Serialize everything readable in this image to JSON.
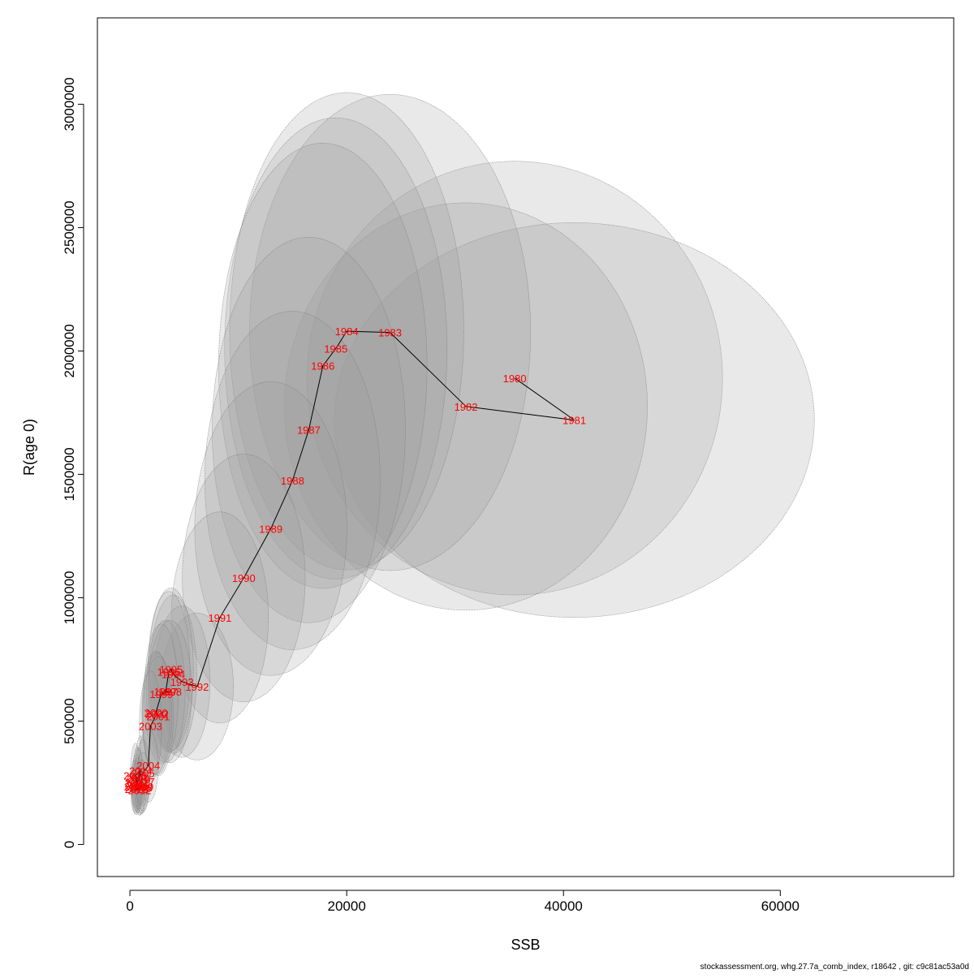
{
  "chart_data": {
    "type": "scatter",
    "title": "",
    "xlabel": "SSB",
    "ylabel": "R(age 0)",
    "xlim": [
      -3000,
      76000
    ],
    "ylim": [
      -130000,
      3350000
    ],
    "x_ticks": [
      0,
      20000,
      40000,
      60000
    ],
    "x_tick_labels": [
      "0",
      "20000",
      "40000",
      "60000"
    ],
    "y_ticks": [
      0,
      500000,
      1000000,
      1500000,
      2000000,
      2500000,
      3000000
    ],
    "y_tick_labels": [
      "0",
      "500000",
      "1000000",
      "1500000",
      "2000000",
      "2500000",
      "3000000"
    ],
    "grid": false,
    "legend": "none",
    "line_color": "#000000",
    "label_color": "#ff0000",
    "ellipse_fill": "#999999",
    "ellipse_stroke": "#777777",
    "points": [
      {
        "year": "1980",
        "ssb": 35500,
        "rec": 1890000
      },
      {
        "year": "1981",
        "ssb": 41000,
        "rec": 1720000
      },
      {
        "year": "1982",
        "ssb": 31000,
        "rec": 1775000
      },
      {
        "year": "1983",
        "ssb": 24000,
        "rec": 2075000
      },
      {
        "year": "1984",
        "ssb": 20000,
        "rec": 2080000
      },
      {
        "year": "1985",
        "ssb": 19000,
        "rec": 2010000
      },
      {
        "year": "1986",
        "ssb": 17800,
        "rec": 1940000
      },
      {
        "year": "1987",
        "ssb": 16500,
        "rec": 1680000
      },
      {
        "year": "1988",
        "ssb": 15000,
        "rec": 1475000
      },
      {
        "year": "1989",
        "ssb": 13000,
        "rec": 1280000
      },
      {
        "year": "1990",
        "ssb": 10500,
        "rec": 1080000
      },
      {
        "year": "1991",
        "ssb": 8300,
        "rec": 920000
      },
      {
        "year": "1992",
        "ssb": 6200,
        "rec": 640000
      },
      {
        "year": "1993",
        "ssb": 4800,
        "rec": 660000
      },
      {
        "year": "1994",
        "ssb": 4000,
        "rec": 690000
      },
      {
        "year": "1995",
        "ssb": 3800,
        "rec": 710000
      },
      {
        "year": "1996",
        "ssb": 3600,
        "rec": 700000
      },
      {
        "year": "1997",
        "ssb": 3300,
        "rec": 620000
      },
      {
        "year": "1998",
        "ssb": 3700,
        "rec": 620000
      },
      {
        "year": "1999",
        "ssb": 2900,
        "rec": 610000
      },
      {
        "year": "2000",
        "ssb": 2400,
        "rec": 535000
      },
      {
        "year": "2001",
        "ssb": 2600,
        "rec": 520000
      },
      {
        "year": "2002",
        "ssb": 2500,
        "rec": 530000
      },
      {
        "year": "2003",
        "ssb": 1900,
        "rec": 480000
      },
      {
        "year": "2004",
        "ssb": 1700,
        "rec": 320000
      },
      {
        "year": "2005",
        "ssb": 1200,
        "rec": 290000
      },
      {
        "year": "2006",
        "ssb": 700,
        "rec": 270000
      },
      {
        "year": "2007",
        "ssb": 600,
        "rec": 250000
      },
      {
        "year": "2008",
        "ssb": 1000,
        "rec": 230000
      },
      {
        "year": "2009",
        "ssb": 1100,
        "rec": 235000
      },
      {
        "year": "2010",
        "ssb": 800,
        "rec": 265000
      },
      {
        "year": "2011",
        "ssb": 500,
        "rec": 235000
      },
      {
        "year": "2012",
        "ssb": 900,
        "rec": 220000
      },
      {
        "year": "2013",
        "ssb": 600,
        "rec": 225000
      },
      {
        "year": "2014",
        "ssb": 1000,
        "rec": 300000
      },
      {
        "year": "2015",
        "ssb": 500,
        "rec": 280000
      },
      {
        "year": "2016",
        "ssb": 700,
        "rec": 240000
      },
      {
        "year": "2017",
        "ssb": 1200,
        "rec": 255000
      }
    ]
  },
  "footer_text": "stockassessment.org, whg.27.7a_comb_index, r18642 , git: c9c81ac53a0d"
}
